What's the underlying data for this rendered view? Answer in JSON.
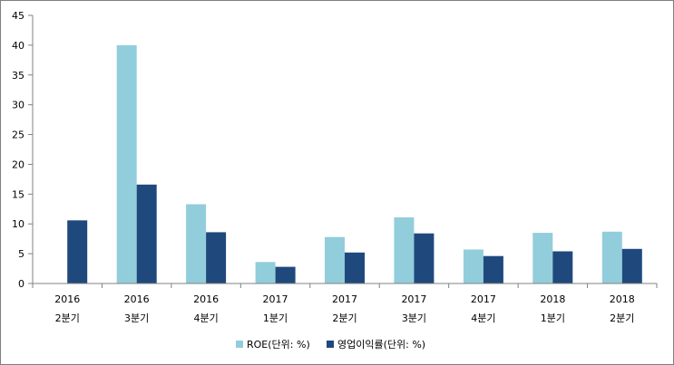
{
  "chart_data": {
    "type": "bar",
    "title": "",
    "xlabel": "",
    "ylabel": "",
    "ylim": [
      0,
      45
    ],
    "yticks": [
      0,
      5,
      10,
      15,
      20,
      25,
      30,
      35,
      40,
      45
    ],
    "grid": false,
    "legend_position": "bottom",
    "categories": [
      {
        "year": "2016",
        "quarter": "2분기"
      },
      {
        "year": "2016",
        "quarter": "3분기"
      },
      {
        "year": "2016",
        "quarter": "4분기"
      },
      {
        "year": "2017",
        "quarter": "1분기"
      },
      {
        "year": "2017",
        "quarter": "2분기"
      },
      {
        "year": "2017",
        "quarter": "3분기"
      },
      {
        "year": "2017",
        "quarter": "4분기"
      },
      {
        "year": "2018",
        "quarter": "1분기"
      },
      {
        "year": "2018",
        "quarter": "2분기"
      }
    ],
    "series": [
      {
        "name": "ROE(단위: %)",
        "color": "#92cddc",
        "values": [
          null,
          40.0,
          13.3,
          3.6,
          7.8,
          11.1,
          5.7,
          8.5,
          8.7
        ]
      },
      {
        "name": "영업이익률(단위: %)",
        "color": "#1f497d",
        "values": [
          10.6,
          16.6,
          8.6,
          2.8,
          5.2,
          8.4,
          4.6,
          5.4,
          5.8
        ]
      }
    ]
  }
}
